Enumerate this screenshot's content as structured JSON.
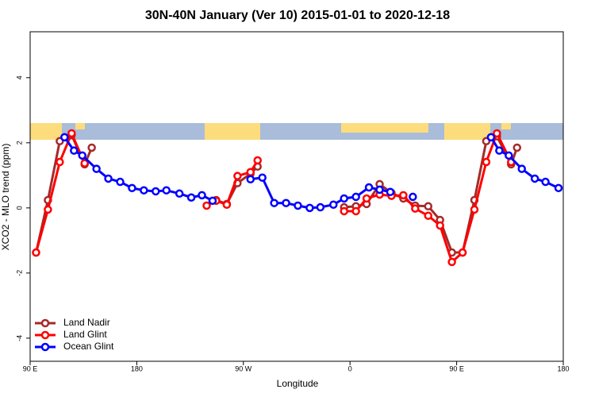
{
  "chart_data": {
    "type": "line",
    "title": "30N-40N January (Ver 10)   2015-01-01 to 2020-12-18",
    "x_label": "Longitude",
    "y_label": "XCO2 - MLO trend (ppm)",
    "xlim": [
      90,
      540
    ],
    "ylim": [
      -4.71,
      5.41
    ],
    "xticks": [
      {
        "value": 90,
        "label": "90 E"
      },
      {
        "value": 180,
        "label": "180"
      },
      {
        "value": 270,
        "label": "90 W"
      },
      {
        "value": 360,
        "label": "0"
      },
      {
        "value": 450,
        "label": "90 E"
      },
      {
        "value": 540,
        "label": "180"
      }
    ],
    "yticks": [
      -4,
      -2,
      0,
      2,
      4
    ],
    "legend": "bottom-left",
    "series": [
      {
        "name": "Land Nadir",
        "color": "#a52a2a",
        "x": [
          95,
          105,
          115,
          125,
          136,
          142,
          null,
          247,
          256,
          265,
          276,
          282,
          null,
          355,
          365,
          374,
          385,
          395,
          405,
          415,
          426,
          436,
          446,
          455,
          465,
          475,
          484,
          496,
          501
        ],
        "values": [
          -1.37,
          0.24,
          2.05,
          2.24,
          1.34,
          1.85,
          null,
          0.24,
          0.12,
          0.76,
          1.05,
          1.27,
          null,
          0.02,
          0.05,
          0.12,
          0.73,
          0.46,
          0.29,
          0.07,
          0.05,
          -0.37,
          -1.37,
          -1.37,
          0.24,
          2.05,
          2.2,
          1.34,
          1.85
        ]
      },
      {
        "name": "Land Glint",
        "color": "#ff0000",
        "x": [
          95,
          105,
          115,
          125,
          136,
          null,
          239,
          247,
          256,
          265,
          276,
          282,
          null,
          355,
          365,
          374,
          385,
          395,
          405,
          415,
          426,
          436,
          446,
          455,
          465,
          475,
          484,
          496
        ],
        "values": [
          -1.37,
          -0.05,
          1.41,
          2.29,
          1.37,
          null,
          0.07,
          0.22,
          0.1,
          0.98,
          1.1,
          1.46,
          null,
          -0.1,
          -0.1,
          0.29,
          0.41,
          0.37,
          0.39,
          -0.02,
          -0.24,
          -0.54,
          -1.66,
          -1.37,
          -0.05,
          1.41,
          2.29,
          1.41
        ]
      },
      {
        "name": "Ocean Glint",
        "color": "#0000ff",
        "x": [
          119,
          127,
          134,
          146,
          156,
          166,
          176,
          186,
          196,
          205,
          216,
          226,
          235,
          244,
          null,
          276,
          286,
          296,
          306,
          316,
          326,
          335,
          346,
          355,
          365,
          376,
          385,
          394,
          null,
          413,
          null,
          479,
          486,
          494,
          505,
          516,
          525,
          536
        ],
        "values": [
          2.17,
          1.76,
          1.61,
          1.2,
          0.9,
          0.8,
          0.61,
          0.54,
          0.51,
          0.54,
          0.44,
          0.32,
          0.39,
          0.22,
          null,
          0.88,
          0.93,
          0.15,
          0.15,
          0.07,
          0,
          0.02,
          0.1,
          0.29,
          0.34,
          0.63,
          0.56,
          0.49,
          null,
          0.34,
          null,
          2.17,
          1.76,
          1.61,
          1.2,
          0.9,
          0.8,
          0.61
        ]
      }
    ]
  }
}
